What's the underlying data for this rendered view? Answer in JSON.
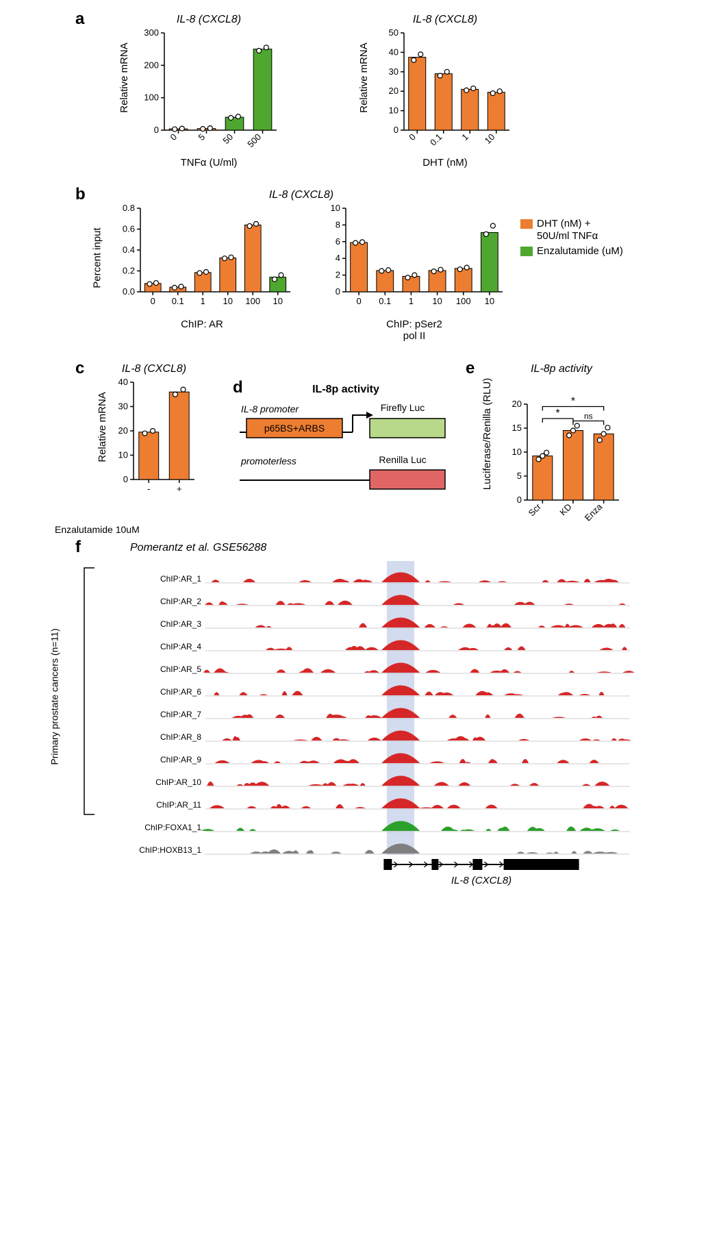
{
  "colors": {
    "orange": "#ed7d31",
    "green": "#4ea72e",
    "red_track": "#d62728",
    "green_track": "#2ca02c",
    "gray_track": "#7f7f7f",
    "highlight": "#a8b8e0",
    "black": "#000000"
  },
  "panel_a": {
    "label": "a",
    "left": {
      "title": "IL-8 (CXCL8)",
      "ylabel": "Relative mRNA",
      "xlabel": "TNFα (U/ml)",
      "ylim": [
        0,
        300
      ],
      "ytick_step": 100,
      "categories": [
        "0",
        "5",
        "50",
        "500"
      ],
      "values": [
        4,
        5,
        40,
        250
      ],
      "points": [
        [
          3,
          5
        ],
        [
          4,
          6
        ],
        [
          38,
          42
        ],
        [
          245,
          255
        ]
      ],
      "colors": [
        "#ed7d31",
        "#ed7d31",
        "#4ea72e",
        "#4ea72e"
      ]
    },
    "right": {
      "title": "IL-8 (CXCL8)",
      "ylabel": "Relative mRNA",
      "xlabel": "DHT (nM)",
      "ylim": [
        0,
        50
      ],
      "ytick_step": 10,
      "categories": [
        "0",
        "0.1",
        "1",
        "10"
      ],
      "values": [
        37.5,
        29,
        21,
        19.5
      ],
      "points": [
        [
          36,
          39
        ],
        [
          28,
          30
        ],
        [
          20.5,
          21.5
        ],
        [
          19,
          20
        ]
      ],
      "colors": [
        "#ed7d31",
        "#ed7d31",
        "#ed7d31",
        "#ed7d31"
      ]
    }
  },
  "panel_b": {
    "label": "b",
    "title": "IL-8 (CXCL8)",
    "legend": {
      "orange_label": "DHT (nM) +\n50U/ml TNFα",
      "green_label": "Enzalutamide (uM)"
    },
    "left": {
      "ylabel": "Percent input",
      "xlabel": "ChIP: AR",
      "ylim": [
        0,
        0.8
      ],
      "ytick_step": 0.2,
      "categories": [
        "0",
        "0.1",
        "1",
        "10",
        "100",
        "10"
      ],
      "values": [
        0.08,
        0.045,
        0.185,
        0.325,
        0.64,
        0.14
      ],
      "points": [
        [
          0.075,
          0.085
        ],
        [
          0.04,
          0.05
        ],
        [
          0.18,
          0.19
        ],
        [
          0.32,
          0.33
        ],
        [
          0.63,
          0.65
        ],
        [
          0.12,
          0.16
        ]
      ],
      "colors": [
        "#ed7d31",
        "#ed7d31",
        "#ed7d31",
        "#ed7d31",
        "#ed7d31",
        "#4ea72e"
      ]
    },
    "right": {
      "ylabel": "",
      "xlabel": "ChIP: pSer2\npol II",
      "ylim": [
        0,
        10
      ],
      "ytick_step": 2,
      "categories": [
        "0",
        "0.1",
        "1",
        "10",
        "100",
        "10"
      ],
      "values": [
        5.9,
        2.55,
        1.85,
        2.55,
        2.8,
        7.1
      ],
      "points": [
        [
          5.85,
          5.95
        ],
        [
          2.5,
          2.6
        ],
        [
          1.7,
          2.0
        ],
        [
          2.45,
          2.65
        ],
        [
          2.7,
          2.9
        ],
        [
          6.9,
          7.9
        ]
      ],
      "colors": [
        "#ed7d31",
        "#ed7d31",
        "#ed7d31",
        "#ed7d31",
        "#ed7d31",
        "#4ea72e"
      ]
    }
  },
  "panel_c": {
    "label": "c",
    "title": "IL-8 (CXCL8)",
    "ylabel": "Relative mRNA",
    "ylim": [
      0,
      40
    ],
    "ytick_step": 10,
    "categories": [
      "-",
      "+"
    ],
    "values": [
      19.5,
      36
    ],
    "points": [
      [
        19,
        20
      ],
      [
        35,
        37
      ]
    ],
    "colors": [
      "#ed7d31",
      "#ed7d31"
    ],
    "caption": "Enzalutamide 10uM"
  },
  "panel_d": {
    "label": "d",
    "title": "IL-8p activity",
    "promoter_label": "IL-8 promoter",
    "box_text": "p65BS+ARBS",
    "firefly_label": "Firefly Luc",
    "promoterless_label": "promoterless",
    "renilla_label": "Renilla Luc"
  },
  "panel_e": {
    "label": "e",
    "title": "IL-8p activity",
    "ylabel": "Luciferase/Renilla (RLU)",
    "ylim": [
      0,
      20
    ],
    "ytick_step": 5,
    "categories": [
      "Scr",
      "KD",
      "Enza"
    ],
    "values": [
      9.2,
      14.5,
      13.8
    ],
    "points": [
      [
        8.5,
        9.2,
        9.9
      ],
      [
        13.5,
        14.5,
        15.5
      ],
      [
        12.5,
        13.8,
        15.1
      ]
    ],
    "colors": [
      "#ed7d31",
      "#ed7d31",
      "#ed7d31"
    ],
    "sig": {
      "scr_kd": "*",
      "scr_enza": "*",
      "kd_enza": "ns"
    }
  },
  "panel_f": {
    "label": "f",
    "source": "Pomerantz et al. GSE56288",
    "group_label": "Primary prostate cancers (n=11)",
    "gene_label": "IL-8 (CXCL8)",
    "tracks": [
      {
        "name": "ChIP:AR_1",
        "color": "#d62728"
      },
      {
        "name": "ChIP:AR_2",
        "color": "#d62728"
      },
      {
        "name": "ChIP:AR_3",
        "color": "#d62728"
      },
      {
        "name": "ChIP:AR_4",
        "color": "#d62728"
      },
      {
        "name": "ChIP:AR_5",
        "color": "#d62728"
      },
      {
        "name": "ChIP:AR_6",
        "color": "#d62728"
      },
      {
        "name": "ChIP:AR_7",
        "color": "#d62728"
      },
      {
        "name": "ChIP:AR_8",
        "color": "#d62728"
      },
      {
        "name": "ChIP:AR_9",
        "color": "#d62728"
      },
      {
        "name": "ChIP:AR_10",
        "color": "#d62728"
      },
      {
        "name": "ChIP:AR_11",
        "color": "#d62728"
      },
      {
        "name": "ChIP:FOXA1_1",
        "color": "#2ca02c"
      },
      {
        "name": "ChIP:HOXB13_1",
        "color": "#7f7f7f"
      }
    ]
  }
}
